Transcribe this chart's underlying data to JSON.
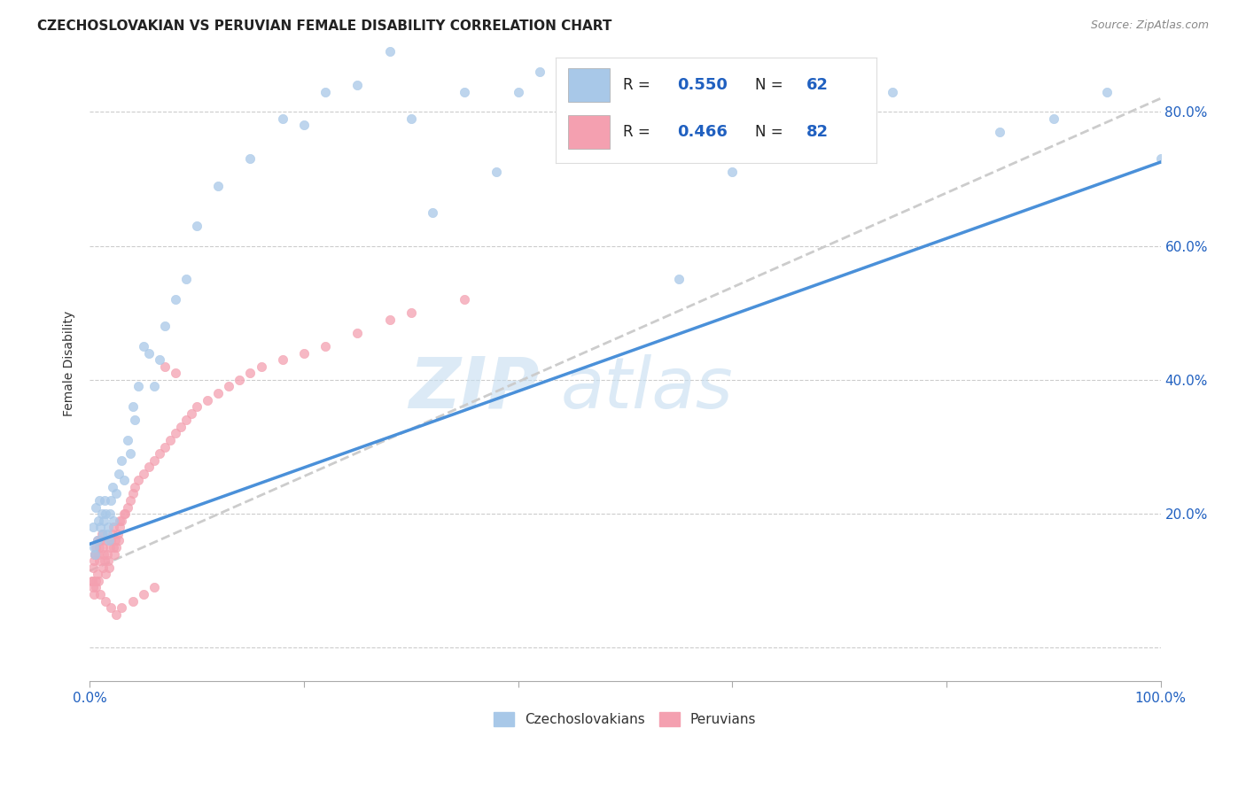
{
  "title": "CZECHOSLOVAKIAN VS PERUVIAN FEMALE DISABILITY CORRELATION CHART",
  "source": "Source: ZipAtlas.com",
  "ylabel": "Female Disability",
  "xlim": [
    0.0,
    1.0
  ],
  "ylim": [
    -0.05,
    0.9
  ],
  "czech_color": "#a8c8e8",
  "peru_color": "#f4a0b0",
  "czech_line_color": "#4a90d9",
  "peru_line_color": "#e05070",
  "legend_color": "#2060c0",
  "czech_R": "0.550",
  "czech_N": "62",
  "peru_R": "0.466",
  "peru_N": "82",
  "watermark_zip": "ZIP",
  "watermark_atlas": "atlas",
  "czech_x": [
    0.003,
    0.004,
    0.005,
    0.006,
    0.007,
    0.008,
    0.009,
    0.01,
    0.011,
    0.012,
    0.013,
    0.014,
    0.015,
    0.016,
    0.017,
    0.018,
    0.019,
    0.02,
    0.021,
    0.022,
    0.025,
    0.027,
    0.03,
    0.032,
    0.035,
    0.038,
    0.04,
    0.042,
    0.045,
    0.05,
    0.055,
    0.06,
    0.065,
    0.07,
    0.08,
    0.09,
    0.1,
    0.12,
    0.15,
    0.18,
    0.2,
    0.22,
    0.25,
    0.3,
    0.35,
    0.38,
    0.4,
    0.45,
    0.5,
    0.6,
    0.65,
    0.7,
    0.75,
    0.85,
    0.9,
    0.95,
    1.0,
    0.28,
    0.32,
    0.42,
    0.48,
    0.55
  ],
  "czech_y": [
    0.18,
    0.15,
    0.14,
    0.21,
    0.16,
    0.19,
    0.22,
    0.18,
    0.2,
    0.17,
    0.19,
    0.22,
    0.2,
    0.17,
    0.18,
    0.16,
    0.2,
    0.22,
    0.24,
    0.19,
    0.23,
    0.26,
    0.28,
    0.25,
    0.31,
    0.29,
    0.36,
    0.34,
    0.39,
    0.45,
    0.44,
    0.39,
    0.43,
    0.48,
    0.52,
    0.55,
    0.63,
    0.69,
    0.73,
    0.79,
    0.78,
    0.83,
    0.84,
    0.79,
    0.83,
    0.71,
    0.83,
    0.78,
    0.83,
    0.71,
    0.76,
    0.79,
    0.83,
    0.77,
    0.79,
    0.83,
    0.73,
    0.89,
    0.65,
    0.86,
    0.74,
    0.55
  ],
  "peru_x": [
    0.002,
    0.003,
    0.004,
    0.005,
    0.006,
    0.007,
    0.008,
    0.009,
    0.01,
    0.011,
    0.012,
    0.013,
    0.014,
    0.015,
    0.016,
    0.017,
    0.018,
    0.019,
    0.02,
    0.021,
    0.022,
    0.023,
    0.024,
    0.025,
    0.026,
    0.027,
    0.028,
    0.03,
    0.032,
    0.035,
    0.038,
    0.04,
    0.042,
    0.045,
    0.05,
    0.055,
    0.06,
    0.065,
    0.07,
    0.075,
    0.08,
    0.085,
    0.09,
    0.095,
    0.1,
    0.11,
    0.12,
    0.13,
    0.14,
    0.15,
    0.16,
    0.18,
    0.2,
    0.22,
    0.25,
    0.28,
    0.3,
    0.35,
    0.08,
    0.07,
    0.06,
    0.05,
    0.04,
    0.03,
    0.025,
    0.02,
    0.015,
    0.01,
    0.008,
    0.006,
    0.005,
    0.004,
    0.003,
    0.002,
    0.015,
    0.012,
    0.009,
    0.007,
    0.006,
    0.022,
    0.028,
    0.033
  ],
  "peru_y": [
    0.1,
    0.12,
    0.13,
    0.14,
    0.15,
    0.16,
    0.14,
    0.15,
    0.16,
    0.17,
    0.15,
    0.14,
    0.13,
    0.16,
    0.14,
    0.13,
    0.12,
    0.15,
    0.16,
    0.17,
    0.15,
    0.14,
    0.16,
    0.15,
    0.17,
    0.16,
    0.18,
    0.19,
    0.2,
    0.21,
    0.22,
    0.23,
    0.24,
    0.25,
    0.26,
    0.27,
    0.28,
    0.29,
    0.3,
    0.31,
    0.32,
    0.33,
    0.34,
    0.35,
    0.36,
    0.37,
    0.38,
    0.39,
    0.4,
    0.41,
    0.42,
    0.43,
    0.44,
    0.45,
    0.47,
    0.49,
    0.5,
    0.52,
    0.41,
    0.42,
    0.09,
    0.08,
    0.07,
    0.06,
    0.05,
    0.06,
    0.07,
    0.08,
    0.1,
    0.09,
    0.14,
    0.08,
    0.09,
    0.1,
    0.11,
    0.12,
    0.13,
    0.11,
    0.1,
    0.18,
    0.19,
    0.2
  ],
  "czech_line_x": [
    0.0,
    1.0
  ],
  "czech_line_y": [
    0.155,
    0.725
  ],
  "peru_line_x": [
    0.0,
    1.0
  ],
  "peru_line_y": [
    0.115,
    0.82
  ],
  "grid_color": "#cccccc",
  "y_tick_vals": [
    0.0,
    0.2,
    0.4,
    0.6,
    0.8
  ],
  "y_tick_labels": [
    "",
    "20.0%",
    "40.0%",
    "60.0%",
    "80.0%"
  ],
  "x_tick_vals": [
    0.0,
    0.2,
    0.4,
    0.6,
    0.8,
    1.0
  ],
  "x_tick_labels": [
    "0.0%",
    "",
    "",
    "",
    "",
    "100.0%"
  ]
}
